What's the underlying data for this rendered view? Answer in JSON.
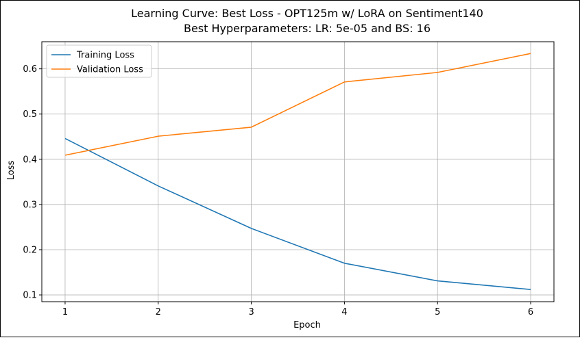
{
  "chart_data": {
    "type": "line",
    "title": "Learning Curve: Best Loss - OPT125m w/ LoRA on Sentiment140",
    "subtitle": "Best Hyperparameters: LR: 5e-05 and BS: 16",
    "xlabel": "Epoch",
    "ylabel": "Loss",
    "x": [
      1,
      2,
      3,
      4,
      5,
      6
    ],
    "xticks": [
      "1",
      "2",
      "3",
      "4",
      "5",
      "6"
    ],
    "yticks": [
      "0.1",
      "0.2",
      "0.3",
      "0.4",
      "0.5",
      "0.6"
    ],
    "xlim": [
      0.75,
      6.25
    ],
    "ylim": [
      0.085,
      0.66
    ],
    "grid": true,
    "legend_position": "top-left",
    "series": [
      {
        "name": "Training Loss",
        "color": "#1f77b4",
        "values": [
          0.446,
          0.341,
          0.247,
          0.17,
          0.131,
          0.112
        ]
      },
      {
        "name": "Validation Loss",
        "color": "#ff7f0e",
        "values": [
          0.409,
          0.451,
          0.471,
          0.571,
          0.592,
          0.634
        ]
      }
    ]
  }
}
